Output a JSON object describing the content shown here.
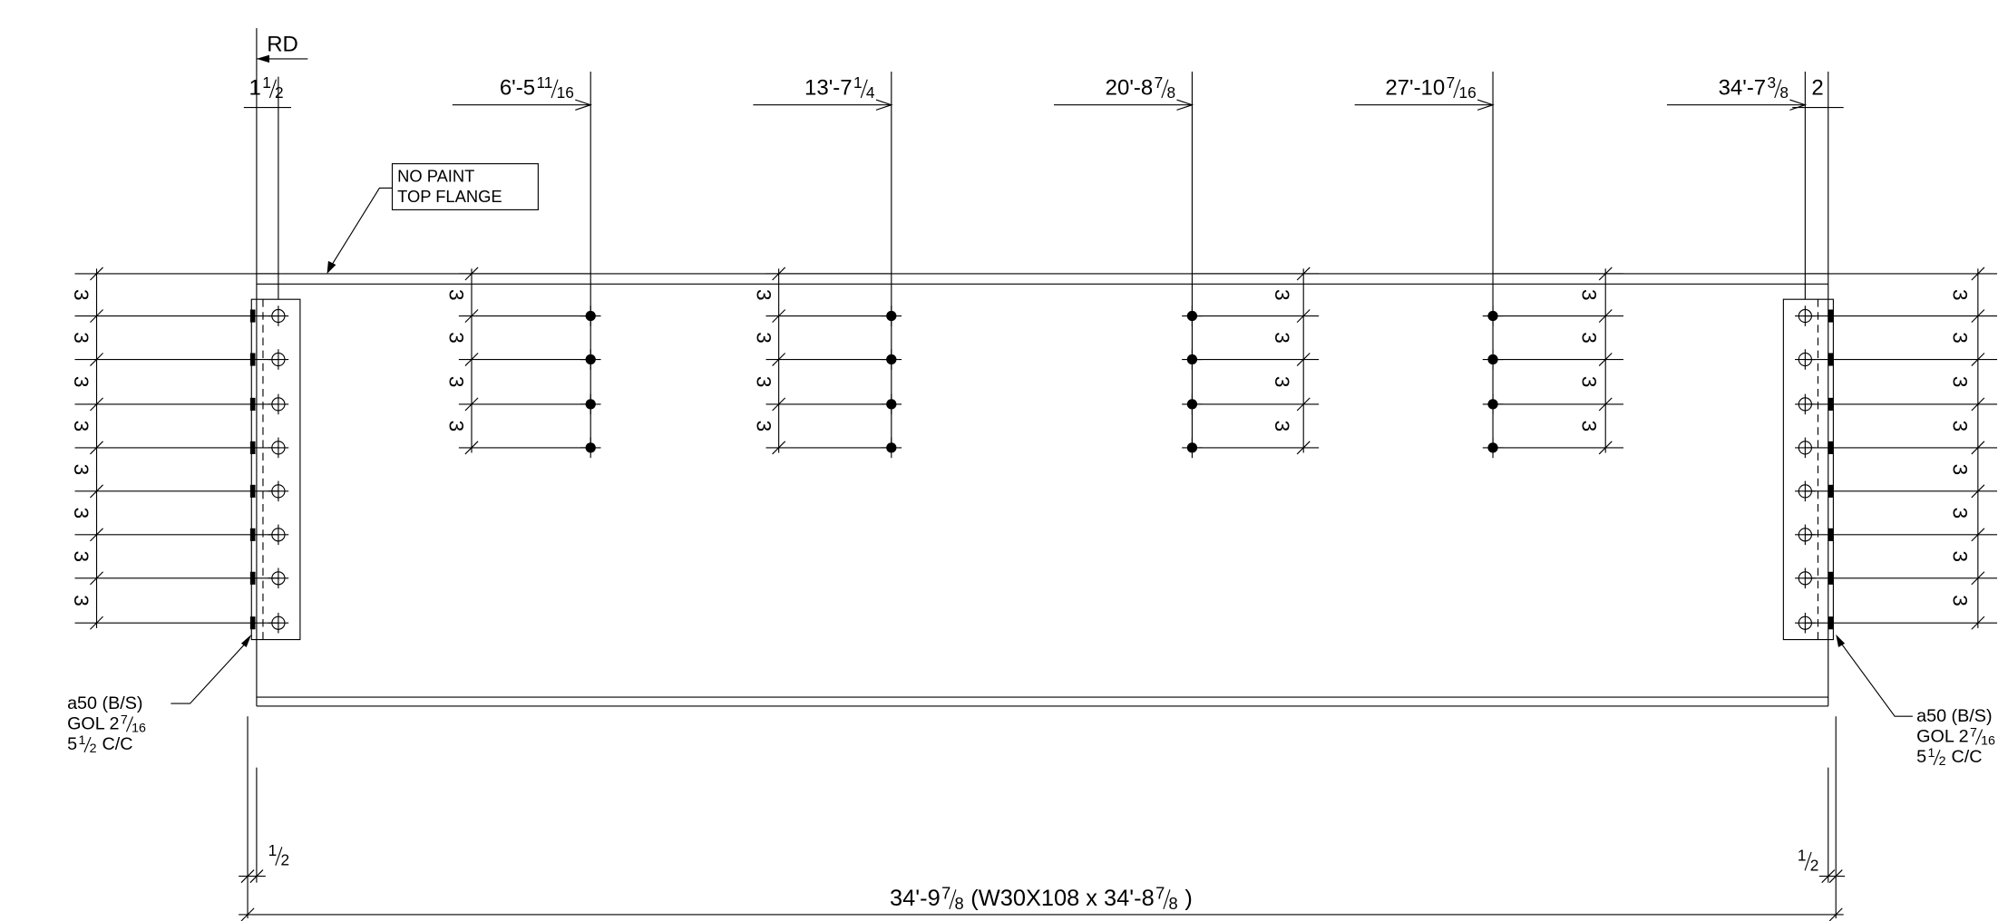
{
  "top": {
    "rd": "RD",
    "left_offset": [
      {
        "text": "1"
      },
      {
        "num": "1",
        "den": "2"
      }
    ],
    "dims": [
      [
        {
          "text": "6'-5"
        },
        {
          "num": "11",
          "den": "16"
        }
      ],
      [
        {
          "text": "13'-7"
        },
        {
          "num": "1",
          "den": "4"
        }
      ],
      [
        {
          "text": "20'-8"
        },
        {
          "num": "7",
          "den": "8"
        }
      ],
      [
        {
          "text": "27'-10"
        },
        {
          "num": "7",
          "den": "16"
        }
      ],
      [
        {
          "text": "34'-7"
        },
        {
          "num": "3",
          "den": "8"
        }
      ]
    ],
    "right_offset": [
      {
        "text": "2"
      }
    ]
  },
  "note": [
    "NO PAINT",
    "TOP FLANGE"
  ],
  "spacings": {
    "left": [
      "3",
      "3",
      "3",
      "3",
      "3",
      "3",
      "3",
      "3"
    ],
    "groups": [
      [
        "3",
        "3",
        "3",
        "3"
      ],
      [
        "3",
        "3",
        "3",
        "3"
      ],
      [
        "3",
        "3",
        "3",
        "3"
      ],
      [
        "3",
        "3",
        "3",
        "3"
      ]
    ],
    "right": [
      "3",
      "3",
      "3",
      "3",
      "3",
      "3",
      "3",
      "3"
    ]
  },
  "welds": {
    "left": [
      [
        {
          "text": "a50 (B/S)"
        }
      ],
      [
        {
          "text": "GOL 2"
        },
        {
          "num": "7",
          "den": "16"
        }
      ],
      [
        {
          "text": "5"
        },
        {
          "num": "1",
          "den": "2"
        },
        {
          "text": "C/C"
        }
      ]
    ],
    "right": [
      [
        {
          "text": "a50 (B/S)"
        }
      ],
      [
        {
          "text": "GOL 2"
        },
        {
          "num": "7",
          "den": "16"
        }
      ],
      [
        {
          "text": "5"
        },
        {
          "num": "1",
          "den": "2"
        },
        {
          "text": "C/C"
        }
      ]
    ]
  },
  "bottom": {
    "left": [
      {
        "num": "1",
        "den": "2"
      }
    ],
    "right": [
      {
        "num": "1",
        "den": "2"
      }
    ],
    "overall": [
      {
        "text": "34'-9"
      },
      {
        "num": "7",
        "den": "8"
      },
      {
        "text": "(W30X108 x 34'-8"
      },
      {
        "num": "7",
        "den": "8"
      },
      {
        "text": ")"
      }
    ]
  }
}
